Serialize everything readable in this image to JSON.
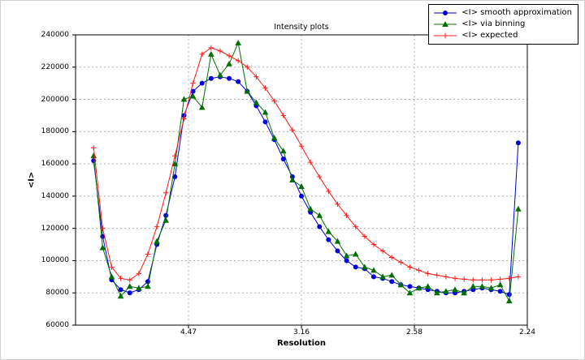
{
  "chart_data": {
    "type": "line",
    "title": "Intensity plots",
    "xlabel": "Resolution",
    "ylabel": "<I>",
    "xlim": [
      0.0,
      0.2
    ],
    "ylim": [
      60000,
      240000
    ],
    "grid": true,
    "legend_position": "upper right, outside axes",
    "xticks": {
      "values": [
        0.05,
        0.1,
        0.15,
        0.2
      ],
      "labels": [
        "4.47",
        "3.16",
        "2.58",
        "2.24"
      ]
    },
    "yticks": {
      "values": [
        60000,
        80000,
        100000,
        120000,
        140000,
        160000,
        180000,
        200000,
        220000,
        240000
      ],
      "labels": [
        "60000",
        "80000",
        "100000",
        "120000",
        "140000",
        "160000",
        "180000",
        "200000",
        "220000",
        "240000"
      ]
    },
    "x": [
      0.008,
      0.012,
      0.016,
      0.02,
      0.024,
      0.028,
      0.032,
      0.036,
      0.04,
      0.044,
      0.048,
      0.052,
      0.056,
      0.06,
      0.064,
      0.068,
      0.072,
      0.076,
      0.08,
      0.084,
      0.088,
      0.092,
      0.096,
      0.1,
      0.104,
      0.108,
      0.112,
      0.116,
      0.12,
      0.124,
      0.128,
      0.132,
      0.136,
      0.14,
      0.144,
      0.148,
      0.152,
      0.156,
      0.16,
      0.164,
      0.168,
      0.172,
      0.176,
      0.18,
      0.184,
      0.188,
      0.192,
      0.196
    ],
    "series": [
      {
        "name": "<I> smooth approximation",
        "color": "#0000dd",
        "marker": "circle",
        "values": [
          162000,
          115000,
          88000,
          82000,
          80000,
          82000,
          87000,
          110000,
          128000,
          152000,
          190000,
          205000,
          210000,
          213000,
          214000,
          213000,
          211000,
          205000,
          196000,
          186000,
          175000,
          163000,
          152000,
          140000,
          130000,
          121000,
          113000,
          106000,
          100000,
          96000,
          95000,
          90000,
          89000,
          87000,
          85000,
          84000,
          83000,
          82000,
          81000,
          80000,
          80000,
          81000,
          82000,
          83000,
          82000,
          81000,
          79000,
          173000
        ]
      },
      {
        "name": "<I> via binning",
        "color": "#007000",
        "marker": "triangle",
        "values": [
          165000,
          108000,
          90000,
          78000,
          84000,
          83000,
          84000,
          112000,
          125000,
          160000,
          200000,
          202000,
          195000,
          228000,
          215000,
          222000,
          235000,
          205000,
          198000,
          192000,
          176000,
          168000,
          150000,
          146000,
          132000,
          128000,
          118000,
          112000,
          103000,
          104000,
          96000,
          94000,
          90000,
          91000,
          85000,
          80000,
          83000,
          84000,
          80000,
          81000,
          82000,
          80000,
          84000,
          84000,
          83000,
          85000,
          75000,
          132000
        ]
      },
      {
        "name": "<I> expected",
        "color": "#ff1a1a",
        "marker": "plus",
        "values": [
          170000,
          120000,
          96000,
          89000,
          88000,
          92000,
          104000,
          121000,
          142000,
          165000,
          188000,
          210000,
          228000,
          232000,
          230000,
          227000,
          224000,
          220000,
          214000,
          207000,
          199000,
          190000,
          181000,
          171000,
          161000,
          152000,
          143000,
          135000,
          128000,
          121000,
          115000,
          110000,
          106000,
          102000,
          99000,
          96000,
          94000,
          92000,
          91000,
          90000,
          89000,
          88500,
          88000,
          88000,
          88000,
          88500,
          89000,
          90000
        ]
      }
    ]
  }
}
